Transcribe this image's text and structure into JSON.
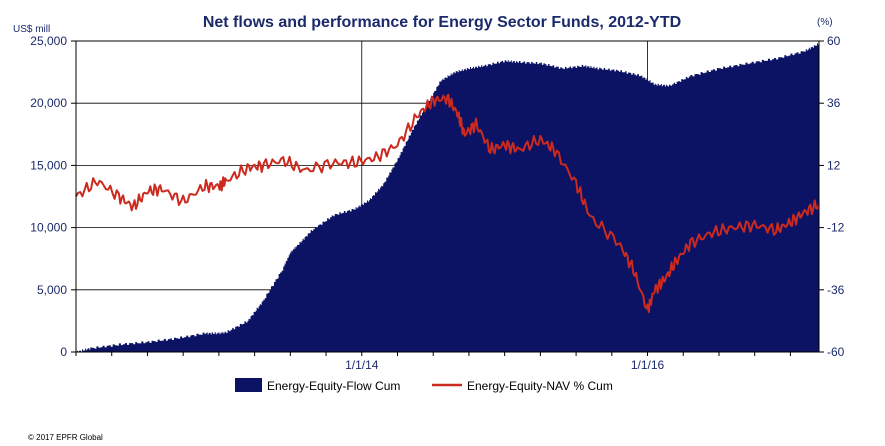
{
  "chart_data": {
    "type": "area+line",
    "title": "Net flows and performance for Energy Sector Funds, 2012-YTD",
    "left_axis": {
      "unit_label": "US$ mill",
      "min": 0,
      "max": 25000,
      "ticks": [
        0,
        5000,
        10000,
        15000,
        20000,
        25000
      ],
      "tick_labels": [
        "0",
        "5,000",
        "10,000",
        "15,000",
        "20,000",
        "25,000"
      ]
    },
    "right_axis": {
      "unit_label": "(%)",
      "min": -60,
      "max": 60,
      "ticks": [
        -60,
        -36,
        -12,
        12,
        36,
        60
      ],
      "tick_labels": [
        "-60",
        "-36",
        "-12",
        "12",
        "36",
        "60"
      ]
    },
    "x_axis": {
      "min": 2012.0,
      "max": 2017.2,
      "ticks": [
        2014.0,
        2016.0
      ],
      "tick_labels": [
        "1/1/14",
        "1/1/16"
      ]
    },
    "grid": true,
    "legend_position": "bottom",
    "series": [
      {
        "name": "Energy-Equity-Flow Cum",
        "type": "area",
        "axis": "left",
        "color": "#0c1264",
        "x": [
          2012.0,
          2012.1,
          2012.3,
          2012.5,
          2012.7,
          2012.9,
          2013.0,
          2013.05,
          2013.2,
          2013.3,
          2013.45,
          2013.5,
          2013.55,
          2013.65,
          2013.8,
          2013.95,
          2014.05,
          2014.15,
          2014.25,
          2014.35,
          2014.45,
          2014.55,
          2014.65,
          2014.75,
          2014.85,
          2015.0,
          2015.1,
          2015.25,
          2015.4,
          2015.55,
          2015.65,
          2015.8,
          2015.95,
          2016.05,
          2016.15,
          2016.3,
          2016.5,
          2016.7,
          2016.9,
          2017.1,
          2017.2
        ],
        "values": [
          0,
          300,
          600,
          800,
          1100,
          1500,
          1500,
          1600,
          2500,
          4000,
          6800,
          8000,
          8600,
          9800,
          11000,
          11500,
          12200,
          13500,
          15500,
          17800,
          19800,
          21800,
          22500,
          22800,
          23000,
          23400,
          23300,
          23200,
          22800,
          23000,
          22800,
          22600,
          22200,
          21500,
          21400,
          22200,
          22800,
          23200,
          23600,
          24200,
          24800
        ]
      },
      {
        "name": "Energy-Equity-NAV % Cum",
        "type": "line",
        "axis": "right",
        "color": "#cc2a1e",
        "x": [
          2012.0,
          2012.15,
          2012.3,
          2012.4,
          2012.5,
          2012.6,
          2012.75,
          2012.9,
          2013.0,
          2013.05,
          2013.2,
          2013.3,
          2013.45,
          2013.6,
          2013.8,
          2013.95,
          2014.1,
          2014.25,
          2014.4,
          2014.5,
          2014.6,
          2014.67,
          2014.72,
          2014.8,
          2014.9,
          2015.0,
          2015.1,
          2015.25,
          2015.35,
          2015.5,
          2015.6,
          2015.8,
          2015.9,
          2016.0,
          2016.05,
          2016.12,
          2016.2,
          2016.3,
          2016.45,
          2016.6,
          2016.75,
          2016.9,
          2017.0,
          2017.1,
          2017.2
        ],
        "values": [
          0,
          6,
          0,
          -4,
          2,
          3,
          -2,
          4,
          4,
          6,
          11,
          12,
          14,
          10,
          13,
          13,
          15,
          20,
          32,
          37,
          38,
          32,
          24,
          28,
          18,
          20,
          18,
          22,
          18,
          5,
          -8,
          -18,
          -28,
          -44,
          -36,
          -32,
          -25,
          -18,
          -14,
          -12,
          -11,
          -13,
          -10,
          -6,
          -3
        ]
      }
    ],
    "copyright": "© 2017 EPFR Global"
  }
}
